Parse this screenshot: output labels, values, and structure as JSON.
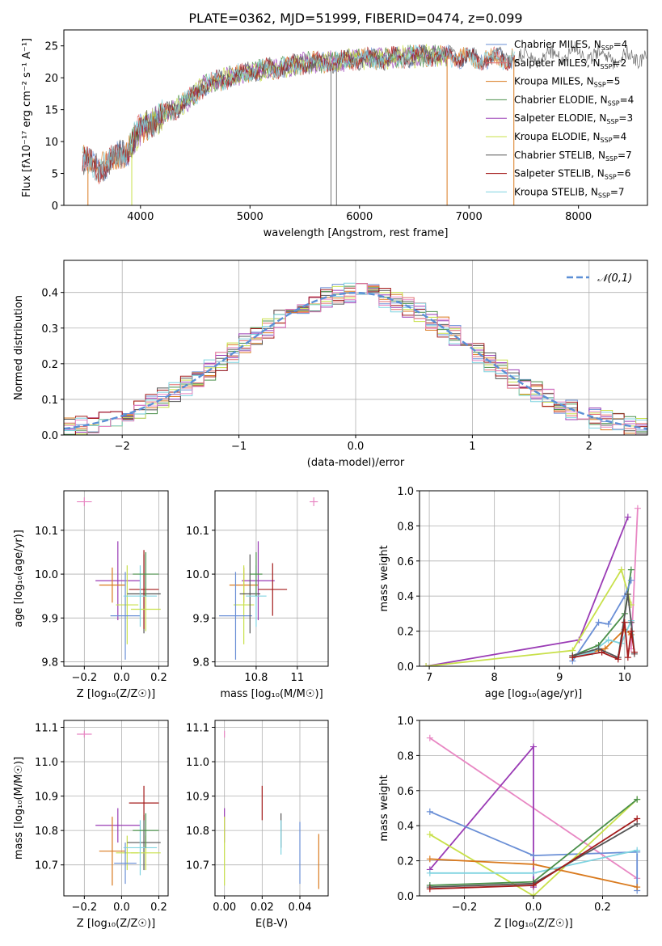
{
  "figure": {
    "title": "PLATE=0362, MJD=51999, FIBERID=0474, z=0.099"
  },
  "chart_data": [
    {
      "id": "spectrum",
      "type": "line",
      "xlabel": "wavelength [Angstrom, rest frame]",
      "ylabel": "Flux [fλ10⁻¹⁷ erg cm⁻² s⁻¹ A⁻¹]",
      "xlim": [
        3300,
        8630
      ],
      "ylim": [
        0,
        27.5
      ],
      "xticks": [
        4000,
        5000,
        6000,
        7000,
        8000
      ],
      "yticks": [
        0,
        5,
        10,
        15,
        20,
        25
      ],
      "grid": false,
      "legend_position": "upper-right",
      "series": [
        {
          "name": "Chabrier MILES, N_SSP=4",
          "color": "#6a8fd6",
          "x_range": [
            3470,
            7420
          ]
        },
        {
          "name": "Salpeter MILES, N_SSP=2",
          "color": "#e06c6c",
          "x_range": [
            3470,
            7420
          ]
        },
        {
          "name": "Kroupa MILES, N_SSP=5",
          "color": "#d97a1e",
          "x_range": [
            3470,
            7420
          ]
        },
        {
          "name": "Chabrier ELODIE, N_SSP=4",
          "color": "#4a8f4a",
          "x_range": [
            3900,
            6800
          ]
        },
        {
          "name": "Salpeter ELODIE, N_SSP=3",
          "color": "#9a3bb5",
          "x_range": [
            3900,
            6800
          ]
        },
        {
          "name": "Kroupa ELODIE, N_SSP=4",
          "color": "#c8e04a",
          "x_range": [
            3900,
            6800
          ]
        },
        {
          "name": "Chabrier STELIB, N_SSP=7",
          "color": "#555555",
          "x_range": [
            3470,
            8620
          ]
        },
        {
          "name": "Salpeter STELIB, N_SSP=6",
          "color": "#a31a1a",
          "x_range": [
            3470,
            7420
          ]
        },
        {
          "name": "Kroupa STELIB, N_SSP=7",
          "color": "#7fd3e0",
          "x_range": [
            3470,
            7420
          ]
        }
      ],
      "continuum": [
        [
          3450,
          7
        ],
        [
          3600,
          6
        ],
        [
          3750,
          7
        ],
        [
          3900,
          9
        ],
        [
          4000,
          12
        ],
        [
          4200,
          14
        ],
        [
          4400,
          16
        ],
        [
          4600,
          19
        ],
        [
          4800,
          20
        ],
        [
          5000,
          21
        ],
        [
          5200,
          21.5
        ],
        [
          5400,
          22
        ],
        [
          5600,
          22.5
        ],
        [
          5800,
          22.5
        ],
        [
          6000,
          23
        ],
        [
          6200,
          23
        ],
        [
          6400,
          23.3
        ],
        [
          6600,
          23.5
        ],
        [
          6800,
          23.5
        ],
        [
          7000,
          23
        ],
        [
          7200,
          23
        ],
        [
          7400,
          23
        ],
        [
          7600,
          23
        ],
        [
          7800,
          23.5
        ],
        [
          8000,
          24
        ],
        [
          8200,
          23.5
        ],
        [
          8400,
          23
        ],
        [
          8600,
          23.5
        ]
      ],
      "drops": [
        {
          "x": 3520,
          "y0": 6,
          "y1": 0,
          "color": "#d97a1e"
        },
        {
          "x": 3920,
          "y0": 8,
          "y1": 0,
          "color": "#c8e04a"
        },
        {
          "x": 5740,
          "y0": 22,
          "y1": 0,
          "color": "#777777"
        },
        {
          "x": 5790,
          "y0": 22,
          "y1": 0,
          "color": "#777777"
        },
        {
          "x": 6800,
          "y0": 23.5,
          "y1": 0,
          "color": "#d97a1e"
        },
        {
          "x": 7410,
          "y0": 23,
          "y1": 0,
          "color": "#d97a1e"
        }
      ]
    },
    {
      "id": "residuals",
      "type": "area",
      "xlabel": "(data-model)/error",
      "ylabel": "Normed distribution",
      "xlim": [
        -2.5,
        2.5
      ],
      "ylim": [
        0,
        0.49
      ],
      "xticks": [
        -2,
        -1,
        0,
        1,
        2
      ],
      "yticks": [
        0.0,
        0.1,
        0.2,
        0.3,
        0.4
      ],
      "grid": true,
      "legend_position": "upper-right",
      "legend": [
        {
          "label": "𝒩(0,1)",
          "color": "#5b8fd6"
        }
      ],
      "bin_width": 0.1,
      "series_colors": [
        "#6a8fd6",
        "#e06c6c",
        "#d97a1e",
        "#4a8f4a",
        "#9a3bb5",
        "#c8e04a",
        "#555555",
        "#a31a1a",
        "#7fd3e0",
        "#e887c3"
      ]
    },
    {
      "id": "age-vs-Z",
      "type": "scatter",
      "xlabel": "Z [log₁₀(Z/Z☉)]",
      "ylabel": "age  [log₁₀(age/yr)]",
      "xlim": [
        -0.31,
        0.25
      ],
      "ylim": [
        9.79,
        10.19
      ],
      "xticks": [
        -0.2,
        0.0,
        0.2
      ],
      "yticks": [
        9.8,
        9.9,
        10.0,
        10.1
      ],
      "grid": true,
      "points": [
        {
          "x": -0.2,
          "y": 10.165,
          "ex": 0.04,
          "ey": 0.01,
          "color": "#e887c3"
        },
        {
          "x": -0.02,
          "y": 9.985,
          "ex": 0.12,
          "ey": 0.09,
          "color": "#9a3bb5"
        },
        {
          "x": -0.05,
          "y": 9.975,
          "ex": 0.07,
          "ey": 0.04,
          "color": "#d97a1e"
        },
        {
          "x": 0.03,
          "y": 9.93,
          "ex": 0.06,
          "ey": 0.09,
          "color": "#c8e04a"
        },
        {
          "x": 0.02,
          "y": 9.905,
          "ex": 0.08,
          "ey": 0.1,
          "color": "#6a8fd6"
        },
        {
          "x": 0.12,
          "y": 9.955,
          "ex": 0.09,
          "ey": 0.09,
          "color": "#555555"
        },
        {
          "x": 0.12,
          "y": 9.965,
          "ex": 0.08,
          "ey": 0.09,
          "color": "#a31a1a"
        },
        {
          "x": 0.13,
          "y": 9.92,
          "ex": 0.08,
          "ey": 0.05,
          "color": "#c8e04a"
        },
        {
          "x": 0.1,
          "y": 9.95,
          "ex": 0.09,
          "ey": 0.07,
          "color": "#7fd3e0"
        },
        {
          "x": 0.13,
          "y": 10.0,
          "ex": 0.07,
          "ey": 0.05,
          "color": "#4a8f4a"
        }
      ]
    },
    {
      "id": "age-vs-mass",
      "type": "scatter",
      "xlabel": "mass [log₁₀(M/M☉)]",
      "ylabel": "",
      "xlim": [
        10.6,
        11.15
      ],
      "ylim": [
        9.79,
        10.19
      ],
      "xticks": [
        10.8,
        11.0
      ],
      "yticks": [
        9.8,
        9.9,
        10.0,
        10.1
      ],
      "grid": true,
      "points": [
        {
          "x": 11.08,
          "y": 10.165,
          "ex": 0.02,
          "ey": 0.01,
          "color": "#e887c3"
        },
        {
          "x": 10.81,
          "y": 9.985,
          "ex": 0.08,
          "ey": 0.09,
          "color": "#9a3bb5"
        },
        {
          "x": 10.74,
          "y": 9.975,
          "ex": 0.07,
          "ey": 0.04,
          "color": "#d97a1e"
        },
        {
          "x": 10.74,
          "y": 9.93,
          "ex": 0.05,
          "ey": 0.09,
          "color": "#c8e04a"
        },
        {
          "x": 10.7,
          "y": 9.905,
          "ex": 0.08,
          "ey": 0.1,
          "color": "#6a8fd6"
        },
        {
          "x": 10.77,
          "y": 9.955,
          "ex": 0.05,
          "ey": 0.09,
          "color": "#555555"
        },
        {
          "x": 10.88,
          "y": 9.965,
          "ex": 0.07,
          "ey": 0.06,
          "color": "#a31a1a"
        },
        {
          "x": 10.8,
          "y": 9.95,
          "ex": 0.05,
          "ey": 0.07,
          "color": "#7fd3e0"
        },
        {
          "x": 10.8,
          "y": 10.0,
          "ex": 0.03,
          "ey": 0.05,
          "color": "#4a8f4a"
        }
      ]
    },
    {
      "id": "mass-weight-vs-age",
      "type": "line",
      "xlabel": "age  [log₁₀(age/yr)]",
      "ylabel": "mass weight",
      "xlim": [
        6.85,
        10.35
      ],
      "ylim": [
        0,
        1
      ],
      "xticks": [
        7,
        8,
        9,
        10
      ],
      "yticks": [
        0.0,
        0.2,
        0.4,
        0.6,
        0.8,
        1.0
      ],
      "grid": true,
      "series": [
        {
          "color": "#9a3bb5",
          "x": [
            6.95,
            9.3,
            10.05
          ],
          "y": [
            0.0,
            0.15,
            0.85
          ]
        },
        {
          "color": "#e887c3",
          "x": [
            10.1,
            10.2
          ],
          "y": [
            0.1,
            0.9
          ]
        },
        {
          "color": "#c8e04a",
          "x": [
            6.95,
            9.2,
            9.95,
            10.1
          ],
          "y": [
            0.0,
            0.09,
            0.55,
            0.35
          ]
        },
        {
          "color": "#4a8f4a",
          "x": [
            9.2,
            9.6,
            10.0,
            10.1
          ],
          "y": [
            0.06,
            0.12,
            0.3,
            0.55
          ]
        },
        {
          "color": "#6a8fd6",
          "x": [
            9.2,
            9.6,
            9.75,
            10.0,
            10.1
          ],
          "y": [
            0.03,
            0.25,
            0.24,
            0.4,
            0.49
          ]
        },
        {
          "color": "#d97a1e",
          "x": [
            9.2,
            9.7,
            10.0,
            10.1
          ],
          "y": [
            0.05,
            0.1,
            0.21,
            0.18
          ]
        },
        {
          "color": "#7fd3e0",
          "x": [
            9.2,
            9.5,
            9.75,
            9.95,
            10.1,
            10.15
          ],
          "y": [
            0.05,
            0.08,
            0.15,
            0.13,
            0.26,
            0.08
          ]
        },
        {
          "color": "#555555",
          "x": [
            9.2,
            9.6,
            9.9,
            10.05,
            10.1,
            10.15
          ],
          "y": [
            0.06,
            0.1,
            0.05,
            0.41,
            0.25,
            0.07
          ]
        },
        {
          "color": "#a31a1a",
          "x": [
            9.2,
            9.65,
            9.9,
            10.0,
            10.05,
            10.1,
            10.15
          ],
          "y": [
            0.05,
            0.08,
            0.04,
            0.25,
            0.05,
            0.2,
            0.08
          ]
        }
      ]
    },
    {
      "id": "mass-vs-Z",
      "type": "scatter",
      "xlabel": "Z [log₁₀(Z/Z☉)]",
      "ylabel": "mass [log₁₀(M/M☉)]",
      "xlim": [
        -0.31,
        0.25
      ],
      "ylim": [
        10.61,
        11.12
      ],
      "xticks": [
        -0.2,
        0.0,
        0.2
      ],
      "yticks": [
        10.7,
        10.8,
        10.9,
        11.0,
        11.1
      ],
      "grid": true,
      "points": [
        {
          "x": -0.2,
          "y": 11.08,
          "ex": 0.04,
          "ey": 0.01,
          "color": "#e887c3"
        },
        {
          "x": -0.02,
          "y": 10.815,
          "ex": 0.12,
          "ey": 0.05,
          "color": "#9a3bb5"
        },
        {
          "x": -0.05,
          "y": 10.74,
          "ex": 0.07,
          "ey": 0.1,
          "color": "#d97a1e"
        },
        {
          "x": 0.03,
          "y": 10.735,
          "ex": 0.06,
          "ey": 0.05,
          "color": "#c8e04a"
        },
        {
          "x": 0.02,
          "y": 10.705,
          "ex": 0.06,
          "ey": 0.06,
          "color": "#6a8fd6"
        },
        {
          "x": 0.12,
          "y": 10.765,
          "ex": 0.09,
          "ey": 0.08,
          "color": "#555555"
        },
        {
          "x": 0.12,
          "y": 10.88,
          "ex": 0.08,
          "ey": 0.05,
          "color": "#a31a1a"
        },
        {
          "x": 0.13,
          "y": 10.735,
          "ex": 0.08,
          "ey": 0.05,
          "color": "#c8e04a"
        },
        {
          "x": 0.1,
          "y": 10.75,
          "ex": 0.09,
          "ey": 0.08,
          "color": "#7fd3e0"
        },
        {
          "x": 0.13,
          "y": 10.8,
          "ex": 0.07,
          "ey": 0.05,
          "color": "#4a8f4a"
        }
      ]
    },
    {
      "id": "mass-vs-EBV",
      "type": "scatter",
      "xlabel": "E(B-V)",
      "ylabel": "",
      "xlim": [
        -0.005,
        0.055
      ],
      "ylim": [
        10.61,
        11.12
      ],
      "xticks": [
        0.0,
        0.02,
        0.04
      ],
      "yticks": [
        10.7,
        10.8,
        10.9,
        11.0,
        11.1
      ],
      "grid": true,
      "points": [
        {
          "x": 0.0,
          "y": 11.08,
          "ex": 0,
          "ey": 0.01,
          "color": "#e887c3"
        },
        {
          "x": 0.0,
          "y": 10.815,
          "ex": 0,
          "ey": 0.05,
          "color": "#9a3bb5"
        },
        {
          "x": 0.0,
          "y": 10.74,
          "ex": 0,
          "ey": 0.1,
          "color": "#c8e04a"
        },
        {
          "x": 0.02,
          "y": 10.88,
          "ex": 0,
          "ey": 0.05,
          "color": "#a31a1a"
        },
        {
          "x": 0.03,
          "y": 10.8,
          "ex": 0,
          "ey": 0.05,
          "color": "#555555"
        },
        {
          "x": 0.03,
          "y": 10.78,
          "ex": 0,
          "ey": 0.05,
          "color": "#7fd3e0"
        },
        {
          "x": 0.04,
          "y": 10.735,
          "ex": 0,
          "ey": 0.09,
          "color": "#6a8fd6"
        },
        {
          "x": 0.05,
          "y": 10.71,
          "ex": 0,
          "ey": 0.08,
          "color": "#d97a1e"
        }
      ]
    },
    {
      "id": "mass-weight-vs-Z",
      "type": "line",
      "xlabel": "Z [log₁₀(Z/Z☉)]",
      "ylabel": "mass weight",
      "xlim": [
        -0.33,
        0.33
      ],
      "ylim": [
        0,
        1
      ],
      "xticks": [
        -0.2,
        0.0,
        0.2
      ],
      "yticks": [
        0.0,
        0.2,
        0.4,
        0.6,
        0.8,
        1.0
      ],
      "grid": true,
      "series": [
        {
          "color": "#e887c3",
          "x": [
            -0.3,
            0.3
          ],
          "y": [
            0.9,
            0.1
          ]
        },
        {
          "color": "#9a3bb5",
          "x": [
            -0.3,
            0.0,
            0.0
          ],
          "y": [
            0.15,
            0.85,
            0.05
          ]
        },
        {
          "color": "#6a8fd6",
          "x": [
            -0.3,
            0.0,
            0.3,
            0.3
          ],
          "y": [
            0.48,
            0.23,
            0.25,
            0.03
          ]
        },
        {
          "color": "#c8e04a",
          "x": [
            -0.3,
            0.0,
            0.3
          ],
          "y": [
            0.35,
            0.0,
            0.55
          ]
        },
        {
          "color": "#d97a1e",
          "x": [
            -0.3,
            0.0,
            0.3
          ],
          "y": [
            0.21,
            0.18,
            0.05
          ]
        },
        {
          "color": "#7fd3e0",
          "x": [
            -0.3,
            0.0,
            0.3
          ],
          "y": [
            0.13,
            0.13,
            0.26
          ]
        },
        {
          "color": "#4a8f4a",
          "x": [
            -0.3,
            0.0,
            0.3
          ],
          "y": [
            0.06,
            0.08,
            0.55
          ]
        },
        {
          "color": "#555555",
          "x": [
            -0.3,
            0.0,
            0.3
          ],
          "y": [
            0.05,
            0.07,
            0.41
          ]
        },
        {
          "color": "#a31a1a",
          "x": [
            -0.3,
            0.0,
            0.3
          ],
          "y": [
            0.04,
            0.06,
            0.44
          ]
        }
      ]
    }
  ]
}
